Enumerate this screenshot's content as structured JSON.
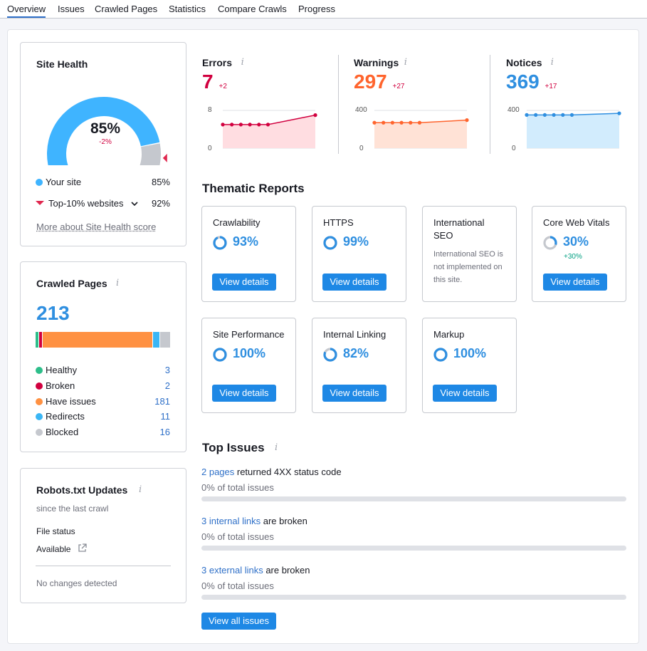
{
  "tabs": [
    "Overview",
    "Issues",
    "Crawled Pages",
    "Statistics",
    "Compare Crawls",
    "Progress"
  ],
  "site_health": {
    "title": "Site Health",
    "value": "85%",
    "delta": "-2%",
    "gauge_fraction": 0.85,
    "your_site_label": "Your site",
    "your_site_value": "85%",
    "top10_label": "Top-10% websites",
    "top10_value": "92%",
    "more_link": "More about Site Health score",
    "colors": {
      "primary": "#3fb4ff",
      "track": "#c5c8ce",
      "marker": "#e0284f"
    }
  },
  "crawled_pages": {
    "title": "Crawled Pages",
    "total": "213",
    "items": [
      {
        "label": "Healthy",
        "value": "3",
        "count": 3,
        "color": "#2dbe8a"
      },
      {
        "label": "Broken",
        "value": "2",
        "count": 2,
        "color": "#d1003f"
      },
      {
        "label": "Have issues",
        "value": "181",
        "count": 181,
        "color": "#ff9142"
      },
      {
        "label": "Redirects",
        "value": "11",
        "count": 11,
        "color": "#3ab6f5"
      },
      {
        "label": "Blocked",
        "value": "16",
        "count": 16,
        "color": "#c5c8ce"
      }
    ]
  },
  "robots": {
    "title": "Robots.txt Updates",
    "subtitle": "since the last crawl",
    "file_status_label": "File status",
    "file_status_value": "Available",
    "changes": "No changes detected"
  },
  "stats": [
    {
      "title": "Errors",
      "value": "7",
      "delta": "+2",
      "color": "#d1003f",
      "delta_color": "#d1003f",
      "fill": "#ffdde1",
      "ymax_label": "8",
      "ymin_label": "0",
      "ymax": 8,
      "points": [
        5,
        5,
        5,
        5,
        5,
        5,
        7
      ]
    },
    {
      "title": "Warnings",
      "value": "297",
      "delta": "+27",
      "color": "#ff642d",
      "delta_color": "#d1003f",
      "fill": "#ffe2d6",
      "ymax_label": "400",
      "ymin_label": "0",
      "ymax": 400,
      "points": [
        270,
        270,
        270,
        270,
        270,
        270,
        297
      ]
    },
    {
      "title": "Notices",
      "value": "369",
      "delta": "+17",
      "color": "#2f8fe0",
      "delta_color": "#d1003f",
      "fill": "#d2ecfd",
      "ymax_label": "400",
      "ymin_label": "0",
      "ymax": 400,
      "points": [
        352,
        352,
        352,
        352,
        352,
        352,
        369
      ]
    }
  ],
  "thematic": {
    "title": "Thematic Reports",
    "button_label": "View details",
    "cards": [
      {
        "name": "Crawlability",
        "pct": "93%",
        "fraction": 0.93
      },
      {
        "name": "HTTPS",
        "pct": "99%",
        "fraction": 0.99
      },
      {
        "name": "International SEO",
        "note": "International SEO is not implemented on this site."
      },
      {
        "name": "Core Web Vitals",
        "pct": "30%",
        "fraction": 0.3,
        "delta": "+30%"
      },
      {
        "name": "Site Performance",
        "pct": "100%",
        "fraction": 1.0
      },
      {
        "name": "Internal Linking",
        "pct": "82%",
        "fraction": 0.82
      },
      {
        "name": "Markup",
        "pct": "100%",
        "fraction": 1.0
      }
    ]
  },
  "top_issues": {
    "title": "Top Issues",
    "items": [
      {
        "link": "2 pages",
        "text": " returned 4XX status code",
        "sub": "0% of total issues"
      },
      {
        "link": "3 internal links",
        "text": " are broken",
        "sub": "0% of total issues"
      },
      {
        "link": "3 external links",
        "text": " are broken",
        "sub": "0% of total issues"
      }
    ],
    "button": "View all issues"
  }
}
